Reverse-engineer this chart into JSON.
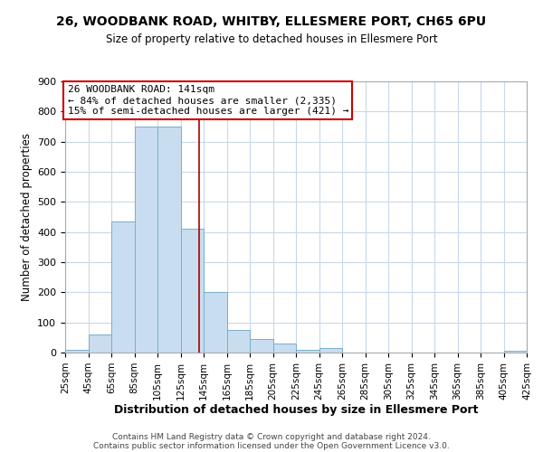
{
  "title": "26, WOODBANK ROAD, WHITBY, ELLESMERE PORT, CH65 6PU",
  "subtitle": "Size of property relative to detached houses in Ellesmere Port",
  "xlabel": "Distribution of detached houses by size in Ellesmere Port",
  "ylabel": "Number of detached properties",
  "bar_color": "#c8ddef",
  "bar_edge_color": "#7aaecb",
  "background_color": "#ffffff",
  "grid_color": "#c8d8e8",
  "annotation_line1": "26 WOODBANK ROAD: 141sqm",
  "annotation_line2": "← 84% of detached houses are smaller (2,335)",
  "annotation_line3": "15% of semi-detached houses are larger (421) →",
  "annotation_box_color": "#cc0000",
  "vline_x": 141,
  "vline_color": "#aa0000",
  "ylim": [
    0,
    900
  ],
  "yticks": [
    0,
    100,
    200,
    300,
    400,
    500,
    600,
    700,
    800,
    900
  ],
  "bin_edges": [
    25,
    45,
    65,
    85,
    105,
    125,
    145,
    165,
    185,
    205,
    225,
    245,
    265,
    285,
    305,
    325,
    345,
    365,
    385,
    405,
    425
  ],
  "bin_values": [
    10,
    60,
    435,
    750,
    750,
    410,
    200,
    75,
    45,
    30,
    10,
    15,
    0,
    0,
    0,
    0,
    0,
    0,
    0,
    5
  ],
  "footer_line1": "Contains HM Land Registry data © Crown copyright and database right 2024.",
  "footer_line2": "Contains public sector information licensed under the Open Government Licence v3.0."
}
